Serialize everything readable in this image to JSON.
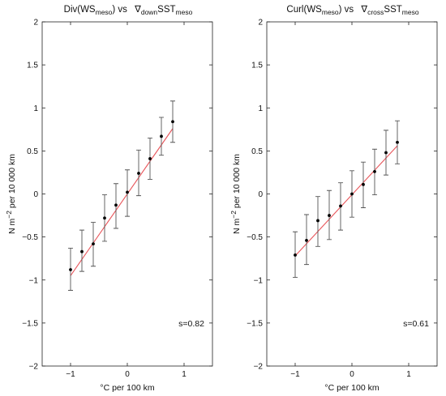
{
  "chart_data": [
    {
      "type": "scatter",
      "title": {
        "prefix": "Div(WS",
        "prefix_sub": "meso",
        "middle": ") vs ",
        "symbol": "∇",
        "symbol_sub": "down",
        "suffix": "SST",
        "suffix_sub": "meso"
      },
      "xlabel": "°C per 100 km",
      "ylabel": {
        "pre": "N m",
        "sup": "−2",
        "post": " per 10 000 km"
      },
      "xlim": [
        -1.5,
        1.5
      ],
      "ylim": [
        -2,
        2
      ],
      "xticks": [
        -1,
        0,
        1
      ],
      "xtick_labels": [
        "−1",
        "0",
        "1"
      ],
      "yticks": [
        -2,
        -1.5,
        -1,
        -0.5,
        0,
        0.5,
        1,
        1.5,
        2
      ],
      "ytick_labels": [
        "−2",
        "−1.5",
        "−1",
        "−0.5",
        "0",
        "0.5",
        "1",
        "1.5",
        "2"
      ],
      "x": [
        -1.0,
        -0.8,
        -0.6,
        -0.4,
        -0.2,
        0.0,
        0.2,
        0.4,
        0.6,
        0.8
      ],
      "y": [
        -0.88,
        -0.67,
        -0.58,
        -0.28,
        -0.13,
        0.02,
        0.24,
        0.41,
        0.67,
        0.84
      ],
      "y_low": [
        -1.12,
        -0.9,
        -0.84,
        -0.55,
        -0.4,
        -0.26,
        -0.02,
        0.17,
        0.45,
        0.6
      ],
      "y_high": [
        -0.63,
        -0.42,
        -0.33,
        -0.01,
        0.12,
        0.28,
        0.51,
        0.65,
        0.89,
        1.08
      ],
      "fit": {
        "x": [
          -1.0,
          0.8
        ],
        "y": [
          -0.95,
          0.76
        ]
      },
      "annotation": "s=0.82",
      "colors": {
        "fit_line": "#e8555a",
        "points": "#000000",
        "error_bars": "#555555"
      },
      "grid": false
    },
    {
      "type": "scatter",
      "title": {
        "prefix": "Curl(WS",
        "prefix_sub": "meso",
        "middle": ") vs ",
        "symbol": "∇",
        "symbol_sub": "cross",
        "suffix": "SST",
        "suffix_sub": "meso"
      },
      "xlabel": "°C per 100 km",
      "ylabel": {
        "pre": "N m",
        "sup": "−2",
        "post": " per 10 000 km"
      },
      "xlim": [
        -1.5,
        1.5
      ],
      "ylim": [
        -2,
        2
      ],
      "xticks": [
        -1,
        0,
        1
      ],
      "xtick_labels": [
        "−1",
        "0",
        "1"
      ],
      "yticks": [
        -2,
        -1.5,
        -1,
        -0.5,
        0,
        0.5,
        1,
        1.5,
        2
      ],
      "ytick_labels": [
        "−2",
        "−1.5",
        "−1",
        "−0.5",
        "0",
        "0.5",
        "1",
        "1.5",
        "2"
      ],
      "x": [
        -1.0,
        -0.8,
        -0.6,
        -0.4,
        -0.2,
        0.0,
        0.2,
        0.4,
        0.6,
        0.8
      ],
      "y": [
        -0.71,
        -0.54,
        -0.31,
        -0.25,
        -0.14,
        0.0,
        0.11,
        0.26,
        0.48,
        0.6
      ],
      "y_low": [
        -0.97,
        -0.82,
        -0.61,
        -0.53,
        -0.42,
        -0.27,
        -0.16,
        -0.01,
        0.22,
        0.35
      ],
      "y_high": [
        -0.44,
        -0.24,
        -0.03,
        0.04,
        0.13,
        0.27,
        0.37,
        0.52,
        0.74,
        0.85
      ],
      "fit": {
        "x": [
          -1.0,
          0.8
        ],
        "y": [
          -0.72,
          0.56
        ]
      },
      "annotation": "s=0.61",
      "colors": {
        "fit_line": "#e8555a",
        "points": "#000000",
        "error_bars": "#555555"
      },
      "grid": false
    }
  ]
}
